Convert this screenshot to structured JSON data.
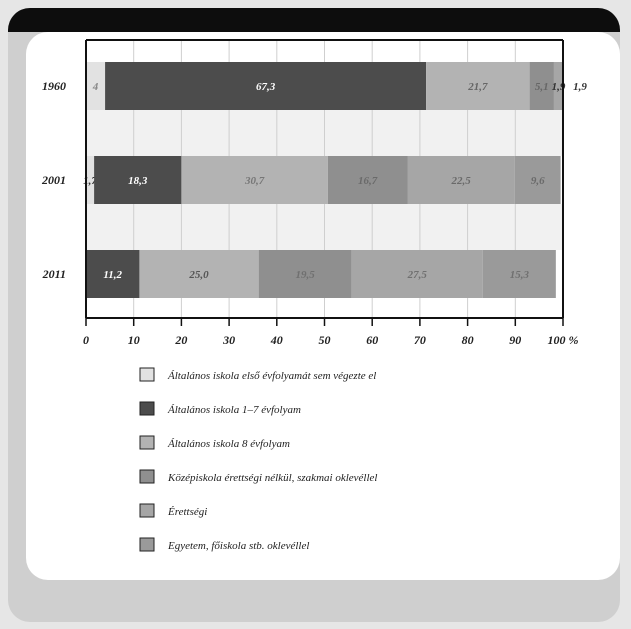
{
  "chart_data": {
    "type": "bar",
    "orientation": "horizontal",
    "stacked": true,
    "title": "",
    "xlabel": "",
    "ylabel": "",
    "x_unit": "%",
    "xlim": [
      0,
      100
    ],
    "x_ticks": [
      "0",
      "10",
      "20",
      "30",
      "40",
      "50",
      "60",
      "70",
      "80",
      "90",
      "100 %"
    ],
    "grid": true,
    "legend_position": "bottom",
    "categories": [
      "1960",
      "2001",
      "2011"
    ],
    "series": [
      {
        "name": "Általános iskola első évfolyamát sem végezte el",
        "color": "#e2e2e2",
        "values": [
          4.0,
          1.7,
          null
        ]
      },
      {
        "name": "Általános iskola 1–7 évfolyam",
        "color": "#4c4c4c",
        "values": [
          67.3,
          18.3,
          11.2
        ]
      },
      {
        "name": "Általános iskola 8 évfolyam",
        "color": "#b3b3b3",
        "values": [
          21.7,
          30.7,
          25.0
        ]
      },
      {
        "name": "Középiskola érettségi nélkül, szakmai oklevéllel",
        "color": "#8f8f8f",
        "values": [
          5.1,
          16.7,
          19.5
        ]
      },
      {
        "name": "Érettségi",
        "color": "#a6a6a6",
        "values": [
          1.9,
          22.5,
          27.5
        ]
      },
      {
        "name": "Egyetem, főiskola stb. oklevéllel",
        "color": "#9a9a9a",
        "values": [
          null,
          9.6,
          15.3
        ]
      }
    ],
    "data_labels": [
      [
        "4",
        "67,3",
        "21,7",
        "5,1",
        "1,9",
        ""
      ],
      [
        "1,7",
        "18,3",
        "30,7",
        "16,7",
        "22,5",
        "9,6"
      ],
      [
        "",
        "11,2",
        "25,0",
        "19,5",
        "27,5",
        "15,3"
      ]
    ],
    "data_label_colors": [
      [
        "#888888",
        "#ffffff",
        "#666666",
        "#666666",
        "#333333",
        ""
      ],
      [
        "#333333",
        "#ffffff",
        "#777777",
        "#6a6a6a",
        "#6a6a6a",
        "#6a6a6a"
      ],
      [
        "",
        "#ffffff",
        "#555555",
        "#707070",
        "#707070",
        "#707070"
      ]
    ]
  }
}
